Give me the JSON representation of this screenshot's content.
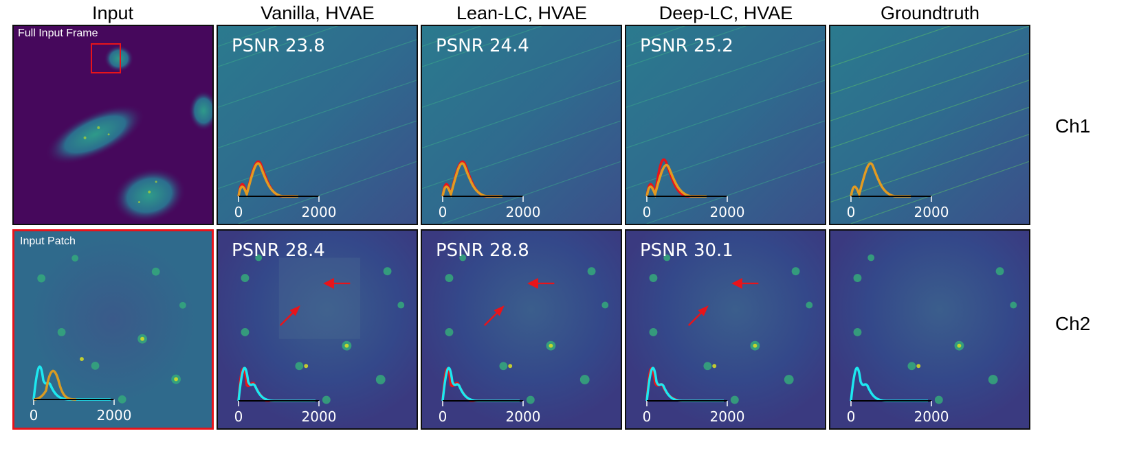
{
  "columns": [
    "Input",
    "Vanilla, HVAE",
    "Lean-LC, HVAE",
    "Deep-LC, HVAE",
    "Groundtruth"
  ],
  "rows": [
    "Ch1",
    "Ch2"
  ],
  "input_labels": {
    "full_frame": "Full Input Frame",
    "patch": "Input Patch"
  },
  "psnr": {
    "ch1": [
      "PSNR 23.8",
      "PSNR 24.4",
      "PSNR 25.2"
    ],
    "ch2": [
      "PSNR 28.4",
      "PSNR 28.8",
      "PSNR 30.1"
    ]
  },
  "histogram_axis": {
    "tick_min": "0",
    "tick_max": "2000"
  },
  "colors": {
    "prediction_ch1": "#e8141a",
    "groundtruth_ch1": "#e39b21",
    "prediction_ch2": "#e8141a",
    "groundtruth_ch2": "#1de8f0",
    "input_ch2_orange": "#d99b22",
    "highlight_box": "#e8141a",
    "arrow": "#e8141a",
    "colormap": "viridis"
  }
}
